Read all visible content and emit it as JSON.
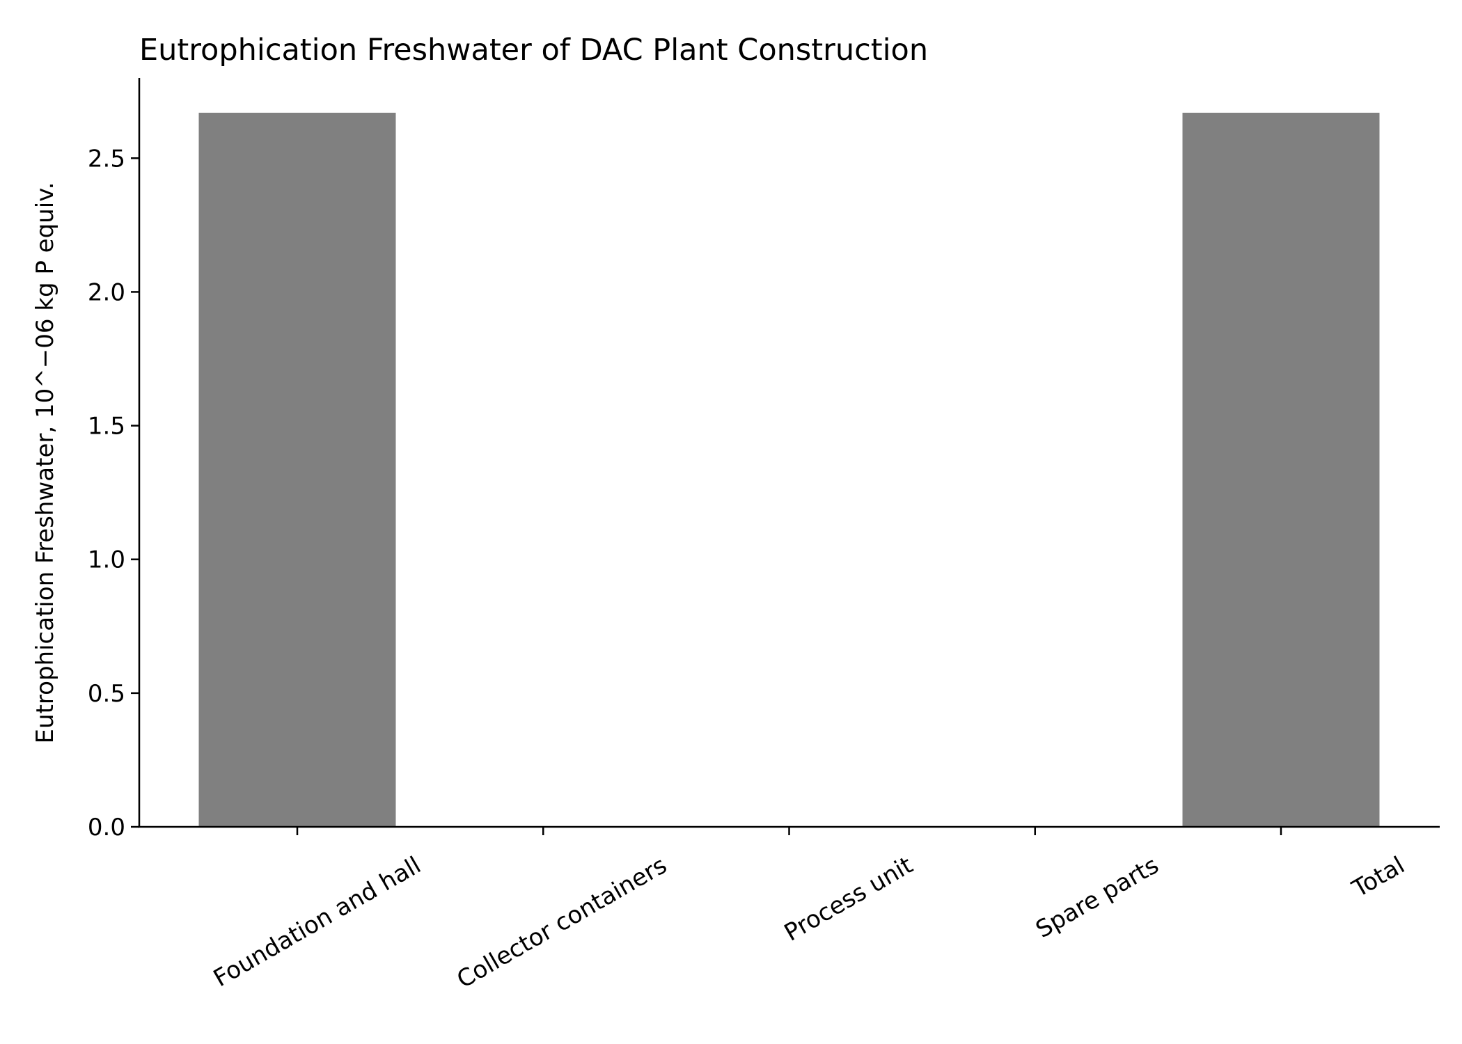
{
  "chart_data": {
    "type": "bar",
    "title": "Eutrophication Freshwater of DAC Plant Construction",
    "xlabel": "",
    "ylabel": "Eutrophication Freshwater, 10^−06 kg P equiv.",
    "categories": [
      "Foundation and hall",
      "Collector containers",
      "Process unit",
      "Spare parts",
      "Total"
    ],
    "values": [
      2.67,
      0,
      0,
      0,
      2.67
    ],
    "ylim": [
      0,
      2.8
    ],
    "yticks": [
      0.0,
      0.5,
      1.0,
      1.5,
      2.0,
      2.5
    ],
    "ytick_labels": [
      "0.0",
      "0.5",
      "1.0",
      "1.5",
      "2.0",
      "2.5"
    ],
    "bar_color": "#808080",
    "grid": false,
    "legend": "none"
  }
}
